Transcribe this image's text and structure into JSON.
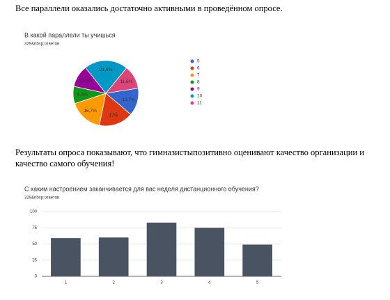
{
  "paragraphs": [
    "Все параллели оказались достаточно активными в проведённом опросе.",
    "Результаты опроса показывают, что гимназистыпозитивно оценивают качество организации и качество самого обучения!"
  ],
  "chart_data": [
    {
      "type": "pie",
      "title": "В какой параллели ты учишься",
      "subtitle": "329&nbsp;ответов",
      "categories": [
        "5",
        "6",
        "7",
        "8",
        "9",
        "10",
        "11"
      ],
      "values": [
        13.7,
        17,
        16.7,
        8.5,
        10.9,
        21.6,
        11.6
      ],
      "value_labels": [
        "13,7%",
        "17%",
        "16,7%",
        "8,5%",
        "10,9%",
        "21,6%",
        "11,6%"
      ],
      "colors": [
        "#3366cc",
        "#dc3912",
        "#ff9900",
        "#109618",
        "#990099",
        "#0099c6",
        "#dd4477"
      ],
      "legend": "right"
    },
    {
      "type": "bar",
      "title": "С каким настроением заканчивается для вас неделя дистанционного обучения?",
      "subtitle": "329&nbsp;ответов",
      "categories": [
        "1",
        "2",
        "3",
        "4",
        "5"
      ],
      "values": [
        59,
        60,
        83,
        75,
        49
      ],
      "color": "#4a5361",
      "ylim": [
        0,
        100
      ],
      "yticks": [
        0,
        25,
        50,
        75,
        100
      ],
      "grid": true
    }
  ]
}
